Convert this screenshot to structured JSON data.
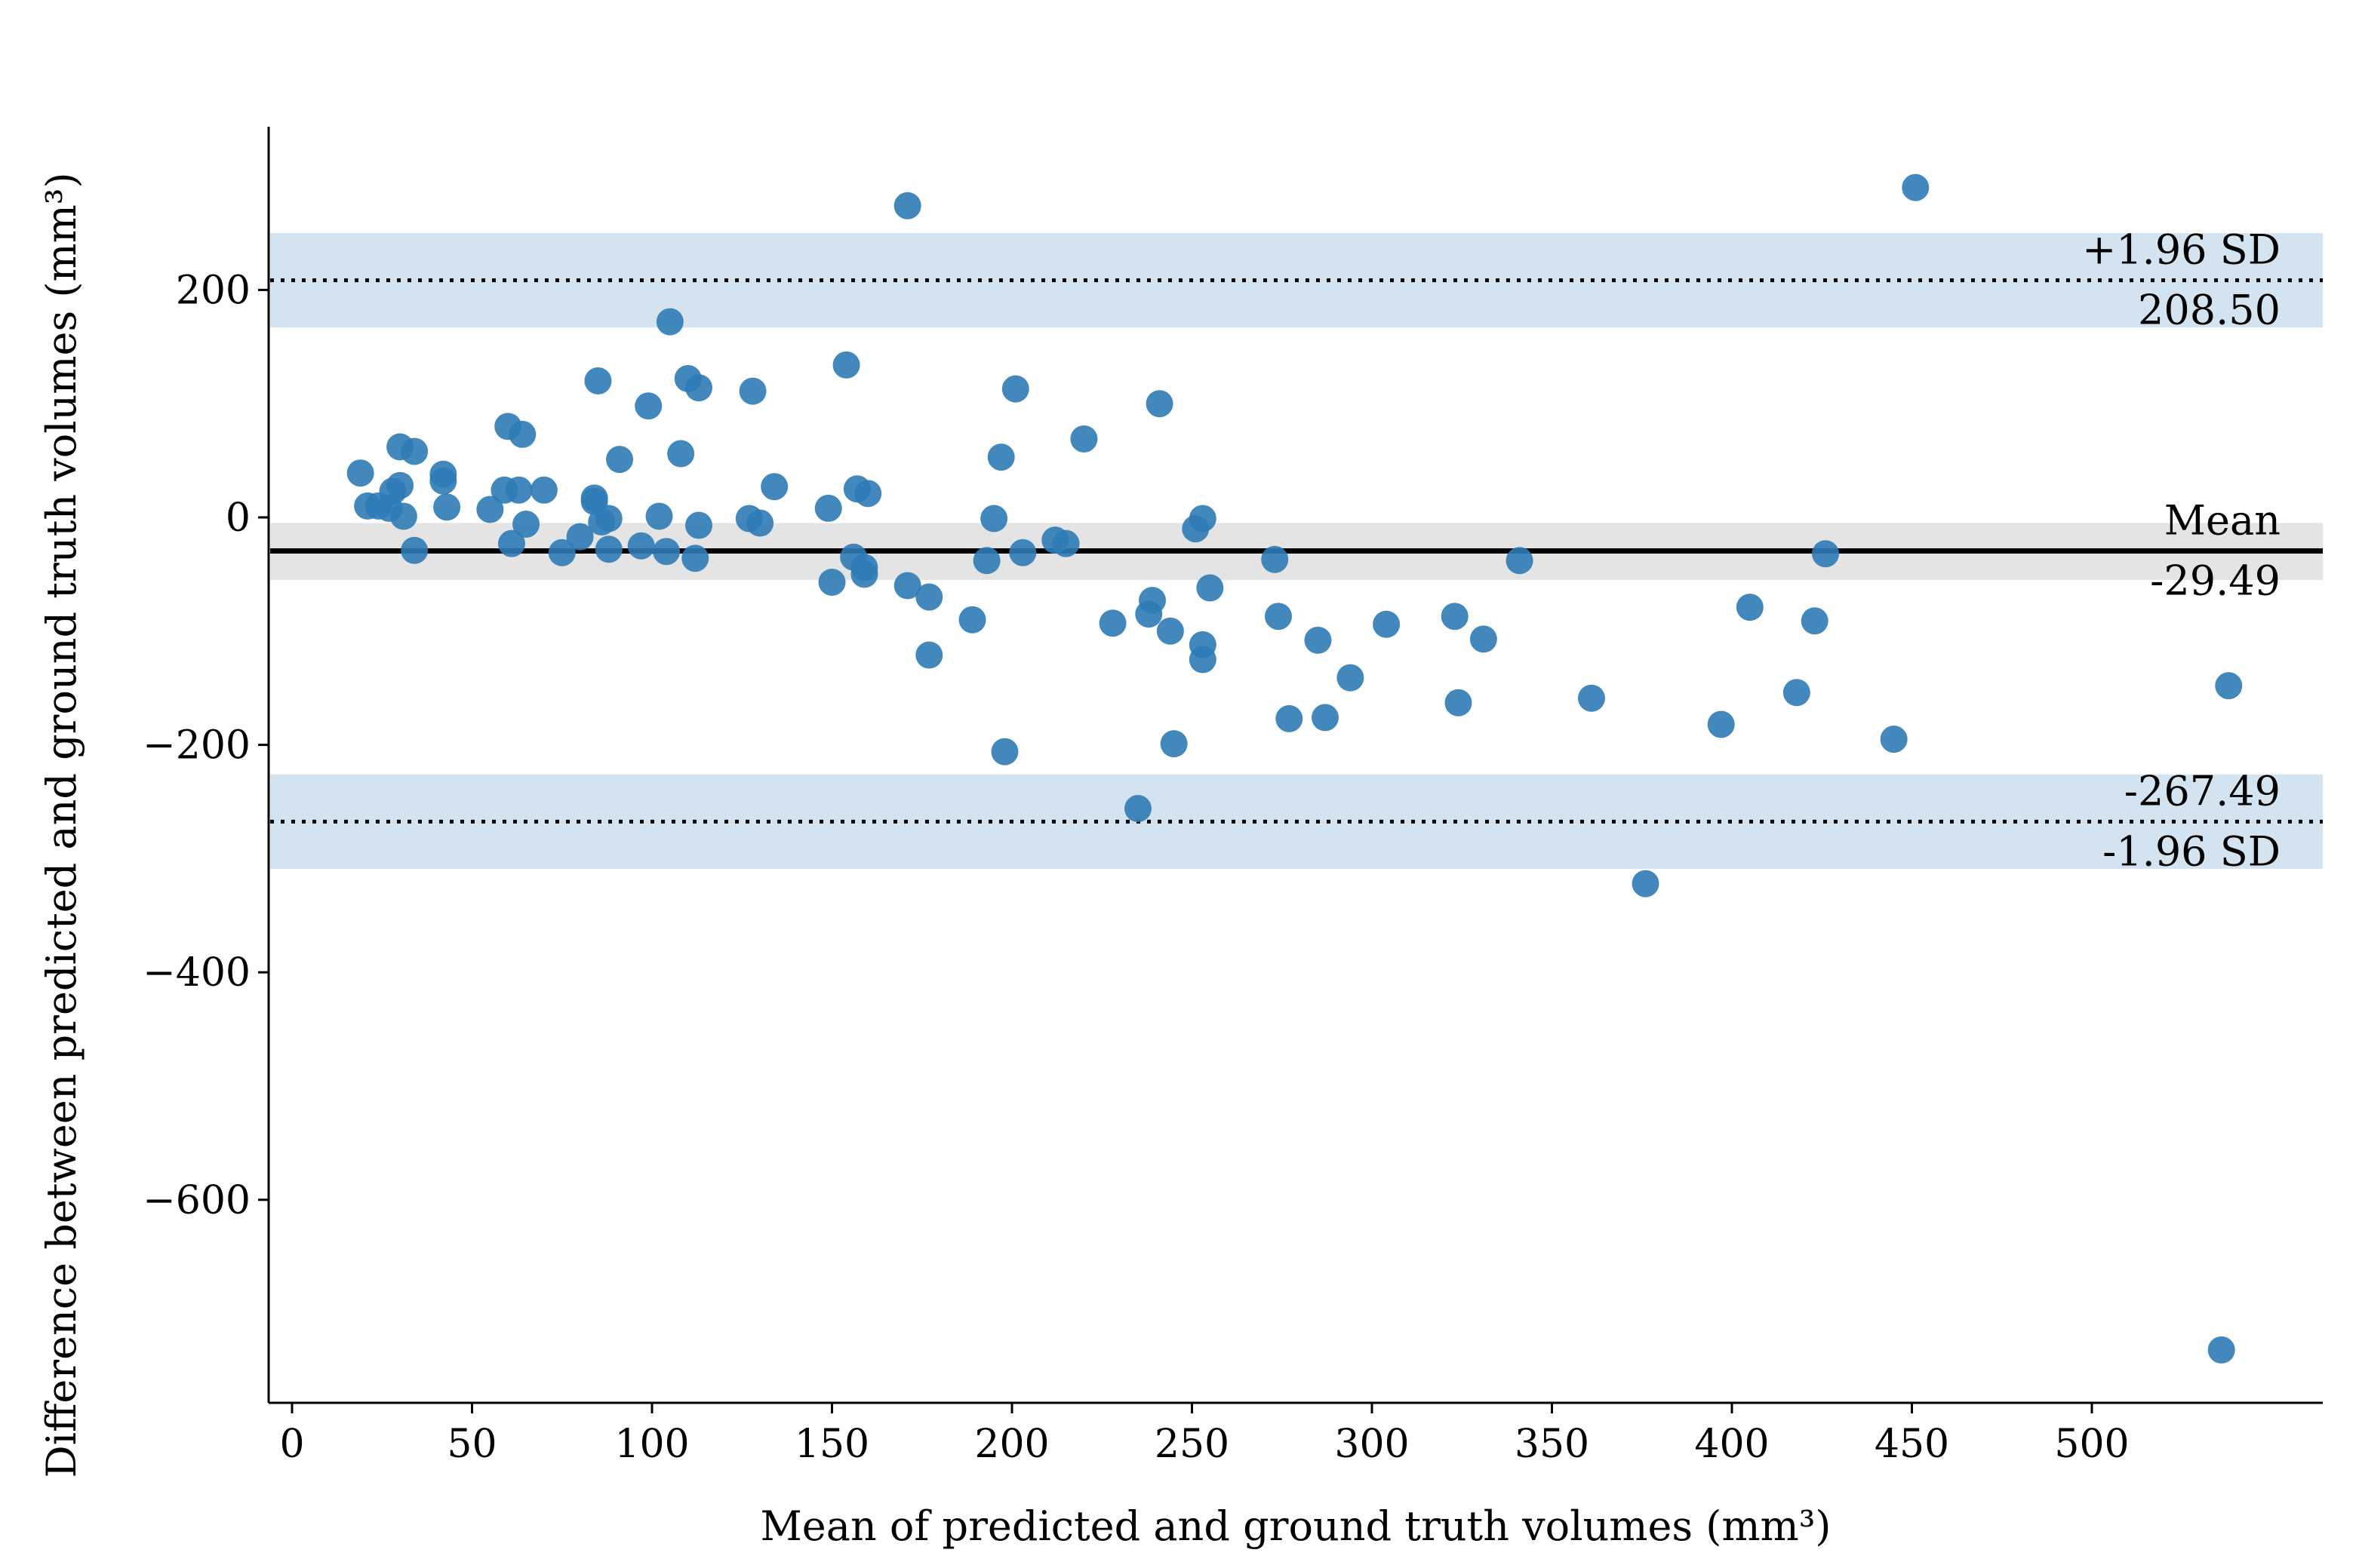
{
  "chart_data": {
    "type": "scatter",
    "title": "",
    "xlabel": "Mean of predicted and ground truth volumes (mm³)",
    "ylabel": "Difference between predicted and ground truth volumes (mm³)",
    "xlim": [
      -5,
      565
    ],
    "ylim": [
      -780,
      340
    ],
    "x_ticks": [
      0,
      50,
      100,
      150,
      200,
      250,
      300,
      350,
      400,
      450,
      500
    ],
    "y_ticks": [
      200,
      0,
      -200,
      -400,
      -600
    ],
    "x_tick_labels": [
      "0",
      "50",
      "100",
      "150",
      "200",
      "250",
      "300",
      "350",
      "400",
      "450",
      "500"
    ],
    "y_tick_labels": [
      "200",
      "0",
      "−200",
      "−400",
      "−600"
    ],
    "grid": false,
    "colors": {
      "points": "#2f7bb6",
      "ci_band_limits": "#d3e4f0",
      "ci_band_mean": "#e4e4e4",
      "lines": "#000000"
    },
    "mean_line": {
      "value": -29.49,
      "label": "Mean",
      "value_label": "-29.49",
      "ci": [
        -55,
        -5
      ]
    },
    "upper_loa": {
      "value": 208.5,
      "label": "+1.96 SD",
      "value_label": "208.50",
      "ci": [
        167,
        250
      ]
    },
    "lower_loa": {
      "value": -267.49,
      "label": "-1.96 SD",
      "value_label": "-267.49",
      "ci": [
        -309,
        -226
      ]
    },
    "points": [
      [
        19,
        39
      ],
      [
        21,
        10
      ],
      [
        24,
        10
      ],
      [
        27,
        8
      ],
      [
        28,
        23
      ],
      [
        30,
        62
      ],
      [
        30,
        28
      ],
      [
        31,
        1
      ],
      [
        34,
        58
      ],
      [
        34,
        -29
      ],
      [
        42,
        38
      ],
      [
        42,
        32
      ],
      [
        43,
        9
      ],
      [
        55,
        7
      ],
      [
        59,
        24
      ],
      [
        60,
        80
      ],
      [
        61,
        -23
      ],
      [
        63,
        24
      ],
      [
        64,
        73
      ],
      [
        65,
        -6
      ],
      [
        70,
        24
      ],
      [
        75,
        -31
      ],
      [
        80,
        -17
      ],
      [
        84,
        17
      ],
      [
        84,
        14
      ],
      [
        85,
        120
      ],
      [
        86,
        -4
      ],
      [
        88,
        -1
      ],
      [
        88,
        -28
      ],
      [
        91,
        51
      ],
      [
        97,
        -25
      ],
      [
        99,
        98
      ],
      [
        102,
        1
      ],
      [
        104,
        -30
      ],
      [
        105,
        172
      ],
      [
        108,
        56
      ],
      [
        110,
        122
      ],
      [
        112,
        -36
      ],
      [
        113,
        114
      ],
      [
        113,
        -7
      ],
      [
        127,
        -1
      ],
      [
        128,
        111
      ],
      [
        130,
        -5
      ],
      [
        134,
        27
      ],
      [
        149,
        8
      ],
      [
        150,
        -57
      ],
      [
        154,
        134
      ],
      [
        156,
        -35
      ],
      [
        157,
        25
      ],
      [
        159,
        -44
      ],
      [
        159,
        -50
      ],
      [
        160,
        21
      ],
      [
        171,
        274
      ],
      [
        171,
        -60
      ],
      [
        177,
        -70
      ],
      [
        177,
        -121
      ],
      [
        189,
        -90
      ],
      [
        193,
        -38
      ],
      [
        195,
        -1
      ],
      [
        197,
        53
      ],
      [
        198,
        -206
      ],
      [
        201,
        113
      ],
      [
        203,
        -31
      ],
      [
        212,
        -20
      ],
      [
        215,
        -23
      ],
      [
        220,
        69
      ],
      [
        228,
        -93
      ],
      [
        238,
        -85
      ],
      [
        239,
        -73
      ],
      [
        241,
        100
      ],
      [
        244,
        -100
      ],
      [
        245,
        -199
      ],
      [
        251,
        -10
      ],
      [
        253,
        -1
      ],
      [
        253,
        -112
      ],
      [
        253,
        -125
      ],
      [
        255,
        -62
      ],
      [
        273,
        -37
      ],
      [
        274,
        -87
      ],
      [
        277,
        -177
      ],
      [
        285,
        -108
      ],
      [
        287,
        -176
      ],
      [
        294,
        -141
      ],
      [
        304,
        -94
      ],
      [
        323,
        -87
      ],
      [
        324,
        -163
      ],
      [
        331,
        -107
      ],
      [
        341,
        -38
      ],
      [
        361,
        -159
      ],
      [
        376,
        -322
      ],
      [
        397,
        -182
      ],
      [
        405,
        -79
      ],
      [
        418,
        -154
      ],
      [
        423,
        -91
      ],
      [
        426,
        -32
      ],
      [
        445,
        -195
      ],
      [
        451,
        290
      ],
      [
        536,
        -732
      ],
      [
        538,
        -148
      ],
      [
        235,
        -256
      ]
    ]
  }
}
